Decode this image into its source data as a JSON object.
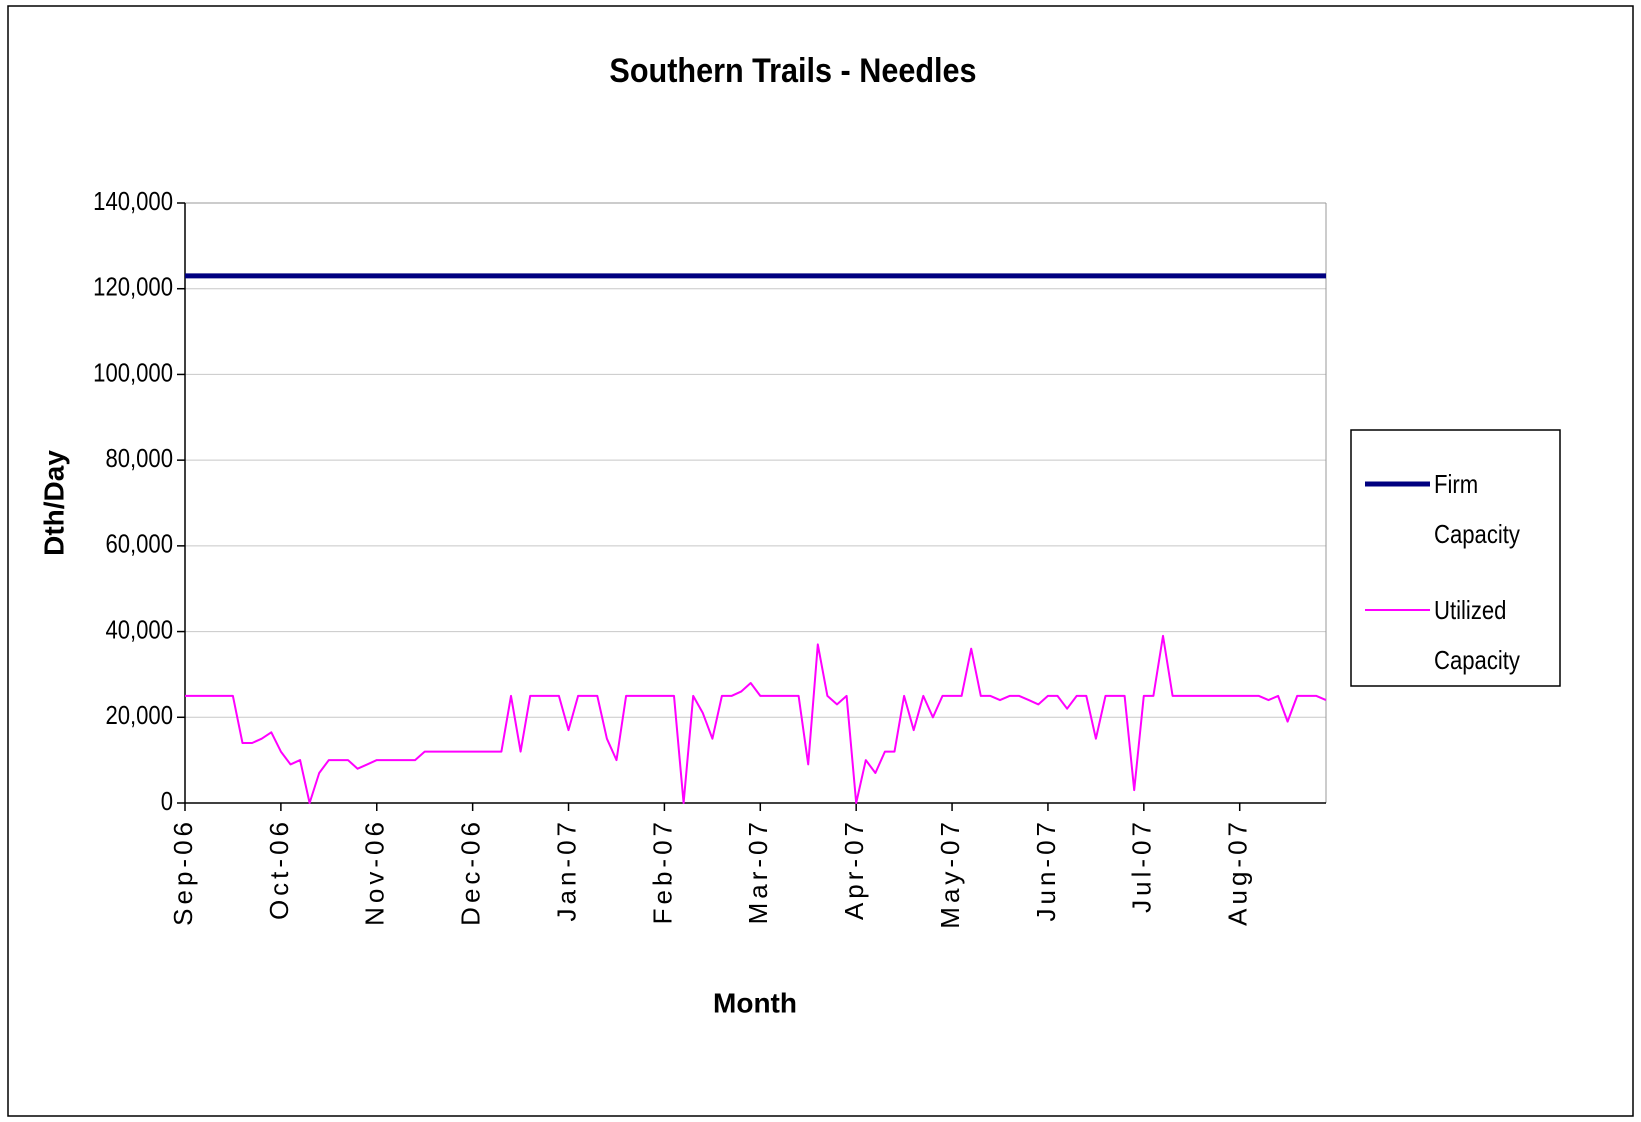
{
  "chart_data": {
    "type": "line",
    "title": "Southern Trails - Needles",
    "x_label": "Month",
    "y_label": "Dth/Day",
    "categories": [
      "Sep-06",
      null,
      null,
      null,
      null,
      null,
      null,
      null,
      null,
      null,
      "Oct-06",
      null,
      null,
      null,
      null,
      null,
      null,
      null,
      null,
      null,
      "Nov-06",
      null,
      null,
      null,
      null,
      null,
      null,
      null,
      null,
      null,
      "Dec-06",
      null,
      null,
      null,
      null,
      null,
      null,
      null,
      null,
      null,
      "Jan-07",
      null,
      null,
      null,
      null,
      null,
      null,
      null,
      null,
      null,
      "Feb-07",
      null,
      null,
      null,
      null,
      null,
      null,
      null,
      null,
      null,
      "Mar-07",
      null,
      null,
      null,
      null,
      null,
      null,
      null,
      null,
      null,
      "Apr-07",
      null,
      null,
      null,
      null,
      null,
      null,
      null,
      null,
      null,
      "May-07",
      null,
      null,
      null,
      null,
      null,
      null,
      null,
      null,
      null,
      "Jun-07",
      null,
      null,
      null,
      null,
      null,
      null,
      null,
      null,
      null,
      "Jul-07",
      null,
      null,
      null,
      null,
      null,
      null,
      null,
      null,
      null,
      "Aug-07",
      null,
      null,
      null,
      null,
      null,
      null,
      null,
      null,
      null
    ],
    "series": [
      {
        "name": "Firm Capacity",
        "color": "#000080",
        "values": [
          123000,
          123000,
          123000,
          123000,
          123000,
          123000,
          123000,
          123000,
          123000,
          123000,
          123000,
          123000,
          123000,
          123000,
          123000,
          123000,
          123000,
          123000,
          123000,
          123000,
          123000,
          123000,
          123000,
          123000,
          123000,
          123000,
          123000,
          123000,
          123000,
          123000,
          123000,
          123000,
          123000,
          123000,
          123000,
          123000,
          123000,
          123000,
          123000,
          123000,
          123000,
          123000,
          123000,
          123000,
          123000,
          123000,
          123000,
          123000,
          123000,
          123000,
          123000,
          123000,
          123000,
          123000,
          123000,
          123000,
          123000,
          123000,
          123000,
          123000,
          123000,
          123000,
          123000,
          123000,
          123000,
          123000,
          123000,
          123000,
          123000,
          123000,
          123000,
          123000,
          123000,
          123000,
          123000,
          123000,
          123000,
          123000,
          123000,
          123000,
          123000,
          123000,
          123000,
          123000,
          123000,
          123000,
          123000,
          123000,
          123000,
          123000,
          123000,
          123000,
          123000,
          123000,
          123000,
          123000,
          123000,
          123000,
          123000,
          123000,
          123000,
          123000,
          123000,
          123000,
          123000,
          123000,
          123000,
          123000,
          123000,
          123000,
          123000,
          123000,
          123000,
          123000,
          123000,
          123000,
          123000,
          123000,
          123000,
          123000
        ]
      },
      {
        "name": "Utilized Capacity",
        "color": "#ff00ff",
        "values": [
          25000,
          25000,
          25000,
          25000,
          25000,
          25000,
          14000,
          14000,
          15000,
          16500,
          12000,
          9000,
          10000,
          0,
          7000,
          10000,
          10000,
          10000,
          8000,
          9000,
          10000,
          10000,
          10000,
          10000,
          10000,
          12000,
          12000,
          12000,
          12000,
          12000,
          12000,
          12000,
          12000,
          12000,
          25000,
          12000,
          25000,
          25000,
          25000,
          25000,
          17000,
          25000,
          25000,
          25000,
          15000,
          10000,
          25000,
          25000,
          25000,
          25000,
          25000,
          25000,
          0,
          25000,
          21000,
          15000,
          25000,
          25000,
          26000,
          28000,
          25000,
          25000,
          25000,
          25000,
          25000,
          9000,
          37000,
          25000,
          23000,
          25000,
          0,
          10000,
          7000,
          12000,
          12000,
          25000,
          17000,
          25000,
          20000,
          25000,
          25000,
          25000,
          36000,
          25000,
          25000,
          24000,
          25000,
          25000,
          24000,
          23000,
          25000,
          25000,
          22000,
          25000,
          25000,
          15000,
          25000,
          25000,
          25000,
          3000,
          25000,
          25000,
          39000,
          25000,
          25000,
          25000,
          25000,
          25000,
          25000,
          25000,
          25000,
          25000,
          25000,
          24000,
          25000,
          19000,
          25000,
          25000,
          25000,
          24000
        ]
      }
    ],
    "ylim": [
      0,
      140000
    ],
    "yticks": [
      0,
      {
        "value": 20000,
        "label": "20,000"
      },
      {
        "value": 40000,
        "label": "40,000"
      },
      {
        "value": 60000,
        "label": "60,000"
      },
      {
        "value": 80000,
        "label": "80,000"
      },
      {
        "value": 100000,
        "label": "100,000"
      },
      {
        "value": 120000,
        "label": "120,000"
      },
      {
        "value": 140000,
        "label": "140,000"
      }
    ],
    "grid": true,
    "legend": "right"
  }
}
